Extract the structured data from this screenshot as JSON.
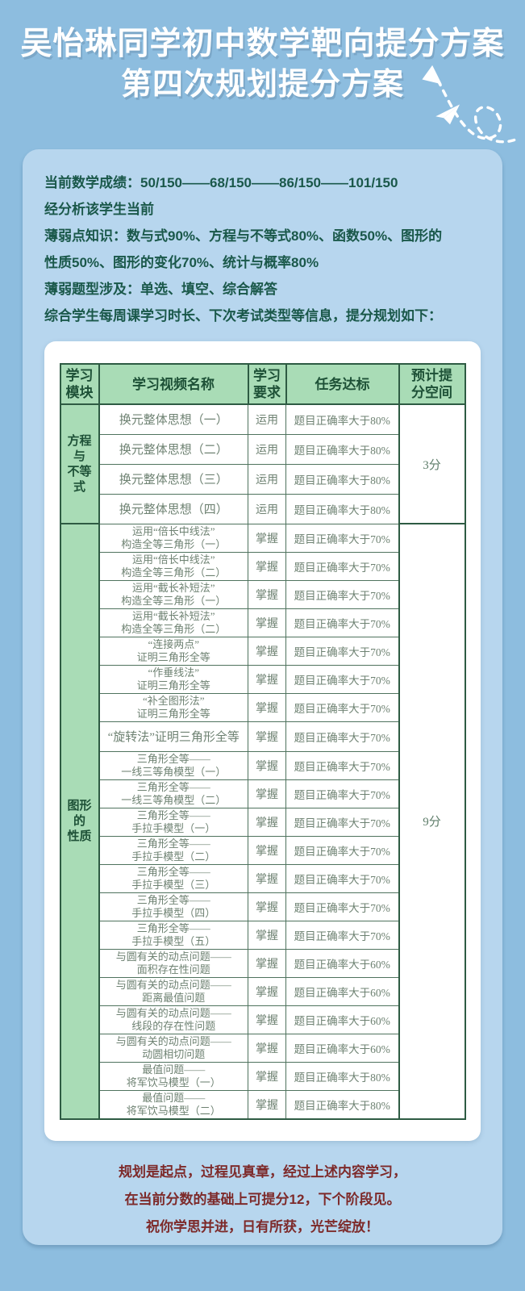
{
  "title": {
    "line1": "吴怡琳同学初中数学靶向提分方案",
    "line2": "第四次规划提分方案"
  },
  "intro": {
    "lines": [
      "当前数学成绩：50/150——68/150——86/150——101/150",
      "经分析该学生当前",
      "薄弱点知识：数与式90%、方程与不等式80%、函数50%、图形的",
      "性质50%、图形的变化70%、统计与概率80%",
      "薄弱题型涉及：单选、填空、综合解答",
      "综合学生每周课学习时长、下次考试类型等信息，提分规划如下："
    ]
  },
  "table": {
    "headers": [
      [
        "学习",
        "模块"
      ],
      [
        "学习视频名称"
      ],
      [
        "学习",
        "要求"
      ],
      [
        "任务达标"
      ],
      [
        "预计提",
        "分空间"
      ]
    ],
    "modules": [
      {
        "name": [
          "方程与",
          "不等式"
        ],
        "score": "3分",
        "rows": [
          {
            "video": [
              "换元整体思想（一）"
            ],
            "req": "运用",
            "target": "题目正确率大于80%"
          },
          {
            "video": [
              "换元整体思想（二）"
            ],
            "req": "运用",
            "target": "题目正确率大于80%"
          },
          {
            "video": [
              "换元整体思想（三）"
            ],
            "req": "运用",
            "target": "题目正确率大于80%"
          },
          {
            "video": [
              "换元整体思想（四）"
            ],
            "req": "运用",
            "target": "题目正确率大于80%"
          }
        ]
      },
      {
        "name": [
          "图形的",
          "性质"
        ],
        "score": "9分",
        "rows": [
          {
            "video": [
              "运用“倍长中线法”",
              "构造全等三角形（一）"
            ],
            "req": "掌握",
            "target": "题目正确率大于70%"
          },
          {
            "video": [
              "运用“倍长中线法”",
              "构造全等三角形（二）"
            ],
            "req": "掌握",
            "target": "题目正确率大于70%"
          },
          {
            "video": [
              "运用“截长补短法”",
              "构造全等三角形（一）"
            ],
            "req": "掌握",
            "target": "题目正确率大于70%"
          },
          {
            "video": [
              "运用“截长补短法”",
              "构造全等三角形（二）"
            ],
            "req": "掌握",
            "target": "题目正确率大于70%"
          },
          {
            "video": [
              "“连接两点”",
              "证明三角形全等"
            ],
            "req": "掌握",
            "target": "题目正确率大于70%"
          },
          {
            "video": [
              "“作垂线法”",
              "证明三角形全等"
            ],
            "req": "掌握",
            "target": "题目正确率大于70%"
          },
          {
            "video": [
              "“补全图形法”",
              "证明三角形全等"
            ],
            "req": "掌握",
            "target": "题目正确率大于70%"
          },
          {
            "video": [
              "“旋转法”证明三角形全等"
            ],
            "req": "掌握",
            "target": "题目正确率大于70%"
          },
          {
            "video": [
              "三角形全等——",
              "一线三等角模型（一）"
            ],
            "req": "掌握",
            "target": "题目正确率大于70%"
          },
          {
            "video": [
              "三角形全等——",
              "一线三等角模型（二）"
            ],
            "req": "掌握",
            "target": "题目正确率大于70%"
          },
          {
            "video": [
              "三角形全等——",
              "手拉手模型（一）"
            ],
            "req": "掌握",
            "target": "题目正确率大于70%"
          },
          {
            "video": [
              "三角形全等——",
              "手拉手模型（二）"
            ],
            "req": "掌握",
            "target": "题目正确率大于70%"
          },
          {
            "video": [
              "三角形全等——",
              "手拉手模型（三）"
            ],
            "req": "掌握",
            "target": "题目正确率大于70%"
          },
          {
            "video": [
              "三角形全等——",
              "手拉手模型（四）"
            ],
            "req": "掌握",
            "target": "题目正确率大于70%"
          },
          {
            "video": [
              "三角形全等——",
              "手拉手模型（五）"
            ],
            "req": "掌握",
            "target": "题目正确率大于70%"
          },
          {
            "video": [
              "与圆有关的动点问题——",
              "面积存在性问题"
            ],
            "req": "掌握",
            "target": "题目正确率大于60%"
          },
          {
            "video": [
              "与圆有关的动点问题——",
              "距离最值问题"
            ],
            "req": "掌握",
            "target": "题目正确率大于60%"
          },
          {
            "video": [
              "与圆有关的动点问题——",
              "线段的存在性问题"
            ],
            "req": "掌握",
            "target": "题目正确率大于60%"
          },
          {
            "video": [
              "与圆有关的动点问题——",
              "动圆相切问题"
            ],
            "req": "掌握",
            "target": "题目正确率大于60%"
          },
          {
            "video": [
              "最值问题——",
              "将军饮马模型（一）"
            ],
            "req": "掌握",
            "target": "题目正确率大于80%"
          },
          {
            "video": [
              "最值问题——",
              "将军饮马模型（二）"
            ],
            "req": "掌握",
            "target": "题目正确率大于80%"
          }
        ]
      }
    ]
  },
  "footer": {
    "lines": [
      "规划是起点，过程见真章，经过上述内容学习，",
      "在当前分数的基础上可提分12，下个阶段见。",
      "祝你学思并进，日有所获，光芒绽放！"
    ]
  },
  "colors": {
    "page_bg": "#8DBDDF",
    "panel_bg": "#B7D6EE",
    "intro_text": "#1A584A",
    "th_bg": "#A9DCB6",
    "th_text": "#1E5137",
    "bd_strong": "#2E5B43",
    "bd_light": "#4F735E",
    "body_text": "#6E8272",
    "score_text": "#5F7E6B",
    "footer_text": "#7D2A2A",
    "title_text": "#FFFFFF",
    "doodle": "#FFFFFF"
  }
}
